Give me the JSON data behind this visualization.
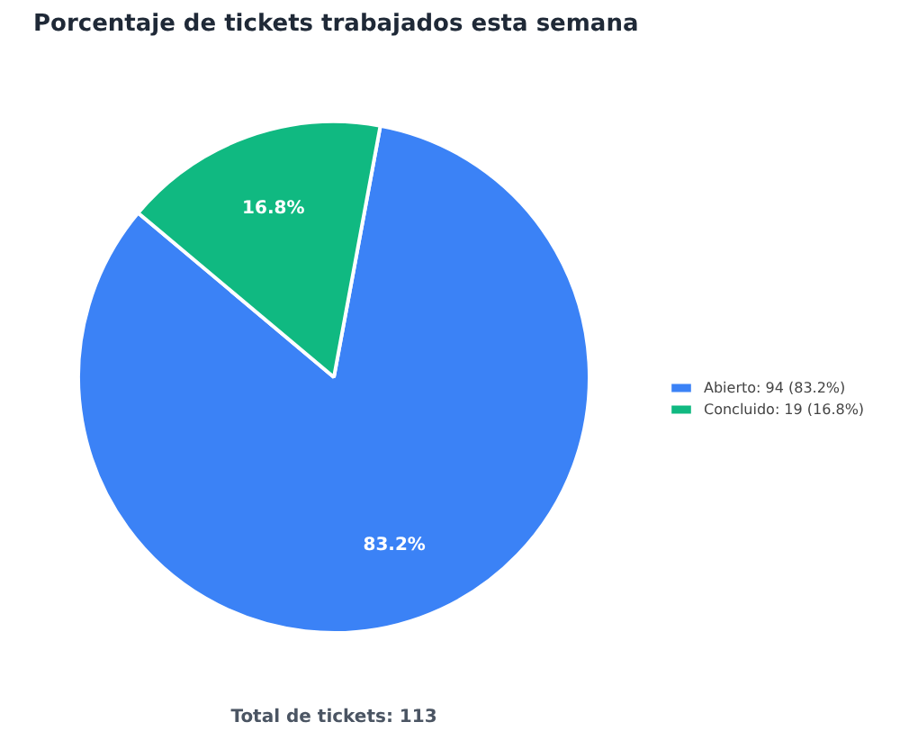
{
  "chart_data": {
    "type": "pie",
    "title": "Porcentaje de tickets trabajados esta semana",
    "categories": [
      "Abierto: 94 (83.2%)",
      "Concluido: 19 (16.8%)"
    ],
    "values": [
      83.2,
      16.8
    ],
    "colors": [
      "#3b82f6",
      "#10b981"
    ],
    "value_labels": [
      "83.2%",
      "16.8%"
    ],
    "legend": "right",
    "annotations": [
      "Total de tickets: 113"
    ]
  }
}
